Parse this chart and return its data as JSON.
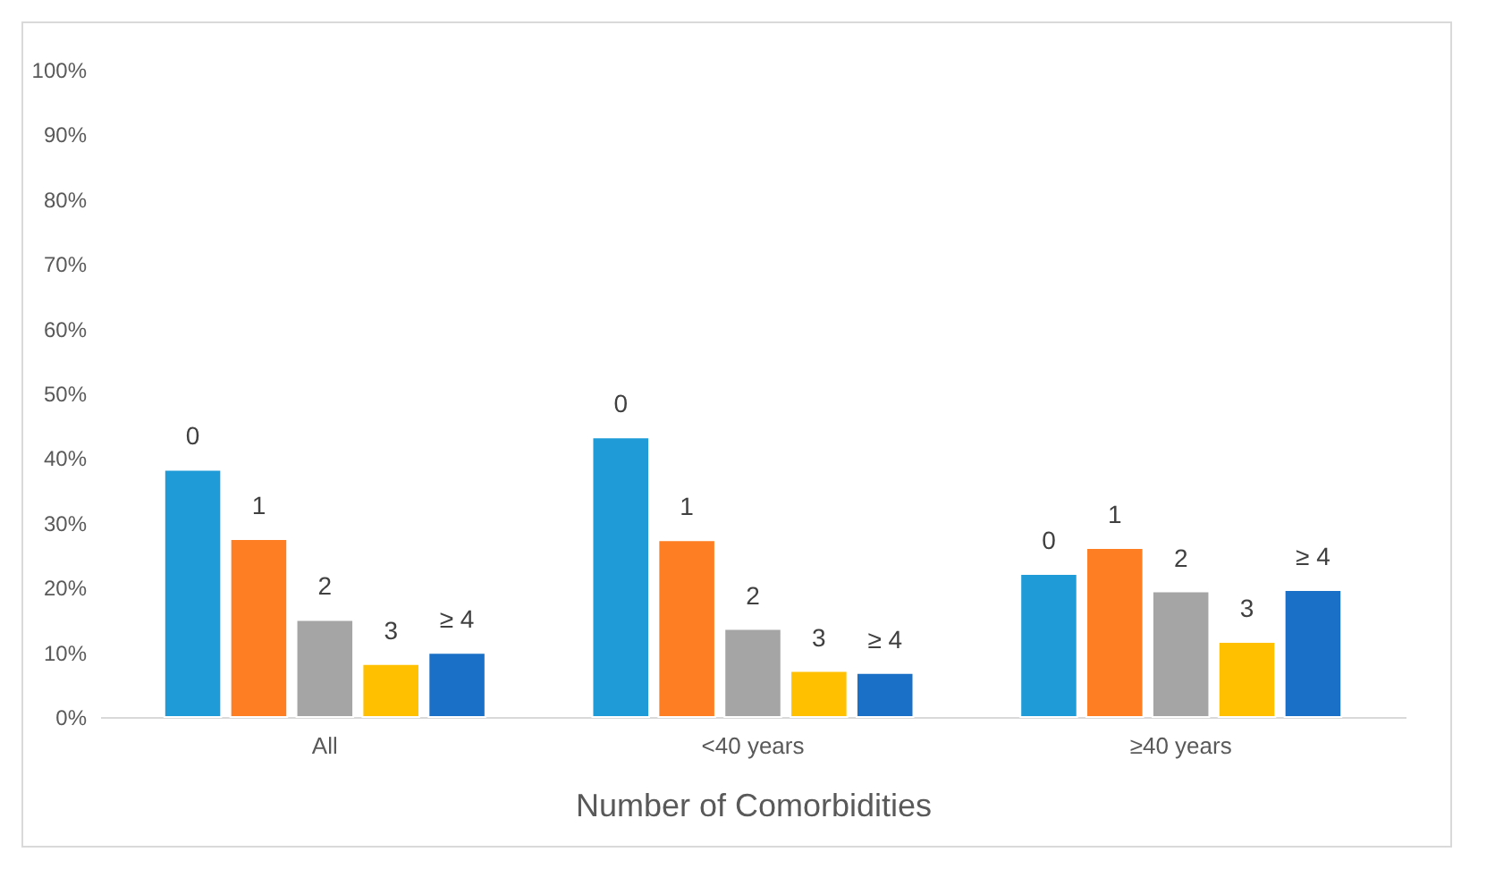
{
  "chart_data": {
    "type": "bar",
    "xlabel": "Number of Comorbidities",
    "categories": [
      "All",
      "<40 years",
      "≥40 years"
    ],
    "series": [
      {
        "name": "0",
        "color": "#1f9cd8",
        "values": [
          38.2,
          43.2,
          22.1
        ]
      },
      {
        "name": "1",
        "color": "#fd7e23",
        "values": [
          27.5,
          27.3,
          26.1
        ]
      },
      {
        "name": "2",
        "color": "#a5a5a5",
        "values": [
          15.0,
          13.6,
          19.4
        ]
      },
      {
        "name": "3",
        "color": "#ffc000",
        "values": [
          8.2,
          7.1,
          11.6
        ]
      },
      {
        "name": "≥ 4",
        "color": "#1a70c6",
        "values": [
          9.9,
          6.8,
          19.6
        ]
      }
    ],
    "ylim": [
      0,
      100
    ],
    "yticks": [
      {
        "value": 0,
        "label": "0%"
      },
      {
        "value": 10,
        "label": "10%"
      },
      {
        "value": 20,
        "label": "20%"
      },
      {
        "value": 30,
        "label": "30%"
      },
      {
        "value": 40,
        "label": "40%"
      },
      {
        "value": 50,
        "label": "50%"
      },
      {
        "value": 60,
        "label": "60%"
      },
      {
        "value": 70,
        "label": "70%"
      },
      {
        "value": 80,
        "label": "80%"
      },
      {
        "value": 90,
        "label": "90%"
      },
      {
        "value": 100,
        "label": "100%"
      }
    ],
    "grid": false,
    "legend": false
  }
}
